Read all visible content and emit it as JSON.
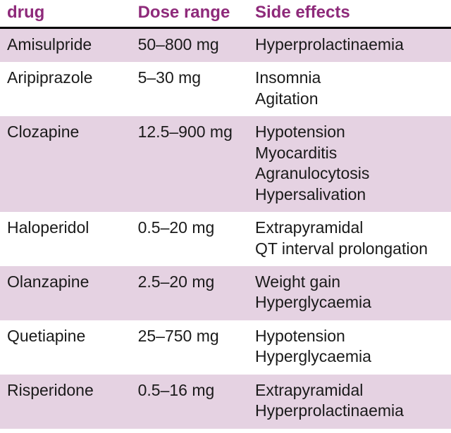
{
  "table": {
    "header_color": "#8e2a7a",
    "row_colors": {
      "even": "#e5d2e2",
      "odd": "#ffffff"
    },
    "text_color": "#1a1a1a",
    "columns": [
      {
        "key": "drug",
        "label": "drug"
      },
      {
        "key": "dose",
        "label": "Dose range"
      },
      {
        "key": "side",
        "label": "Side effects"
      }
    ],
    "rows": [
      {
        "drug": "Amisulpride",
        "dose": "50–800 mg",
        "side": [
          "Hyperprolactinaemia"
        ]
      },
      {
        "drug": "Aripiprazole",
        "dose": "5–30 mg",
        "side": [
          "Insomnia",
          "Agitation"
        ]
      },
      {
        "drug": "Clozapine",
        "dose": "12.5–900 mg",
        "side": [
          "Hypotension",
          "Myocarditis",
          "Agranulocytosis",
          "Hypersalivation"
        ]
      },
      {
        "drug": "Haloperidol",
        "dose": "0.5–20 mg",
        "side": [
          "Extrapyramidal",
          "QT interval prolongation"
        ]
      },
      {
        "drug": "Olanzapine",
        "dose": "2.5–20 mg",
        "side": [
          "Weight gain",
          "Hyperglycaemia"
        ]
      },
      {
        "drug": "Quetiapine",
        "dose": "25–750 mg",
        "side": [
          "Hypotension",
          "Hyperglycaemia"
        ]
      },
      {
        "drug": "Risperidone",
        "dose": "0.5–16 mg",
        "side": [
          "Extrapyramidal",
          "Hyperprolactinaemia"
        ]
      }
    ]
  }
}
